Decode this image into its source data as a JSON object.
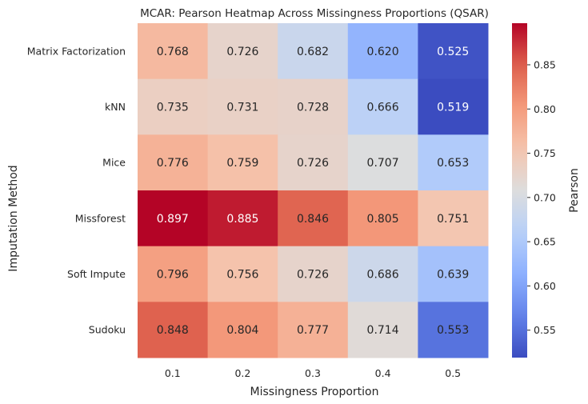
{
  "chart_data": {
    "type": "heatmap",
    "title": "MCAR: Pearson Heatmap Across Missingness Proportions (QSAR)",
    "xlabel": "Missingness Proportion",
    "ylabel": "Imputation Method",
    "x_categories": [
      "0.1",
      "0.2",
      "0.3",
      "0.4",
      "0.5"
    ],
    "y_categories": [
      "Matrix Factorization",
      "kNN",
      "Mice",
      "Missforest",
      "Soft Impute",
      "Sudoku"
    ],
    "values": [
      [
        0.768,
        0.726,
        0.682,
        0.62,
        0.525
      ],
      [
        0.735,
        0.731,
        0.728,
        0.666,
        0.519
      ],
      [
        0.776,
        0.759,
        0.726,
        0.707,
        0.653
      ],
      [
        0.897,
        0.885,
        0.846,
        0.805,
        0.751
      ],
      [
        0.796,
        0.756,
        0.726,
        0.686,
        0.639
      ],
      [
        0.848,
        0.804,
        0.777,
        0.714,
        0.553
      ]
    ],
    "colormap": "coolwarm",
    "value_range": [
      0.519,
      0.897
    ],
    "colorbar": {
      "label": "Pearson",
      "ticks": [
        "0.55",
        "0.60",
        "0.65",
        "0.70",
        "0.75",
        "0.80",
        "0.85"
      ]
    }
  }
}
